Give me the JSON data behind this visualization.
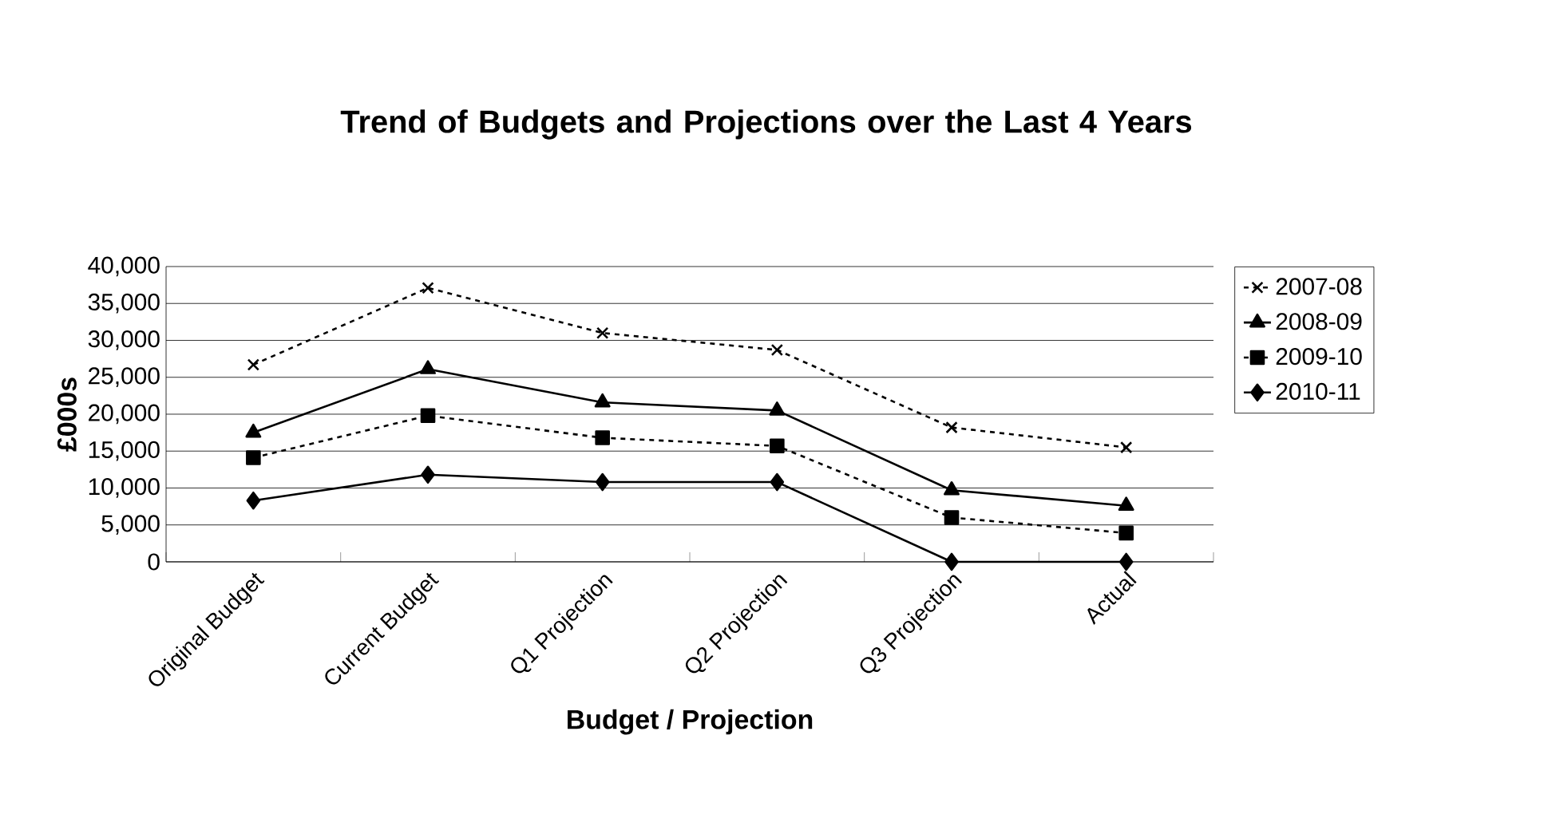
{
  "chart_data": {
    "type": "line",
    "title": "Trend of Budgets and Projections over the Last 4 Years",
    "xlabel": "Budget / Projection",
    "ylabel": "£000s",
    "categories": [
      "Original Budget",
      "Current Budget",
      "Q1 Projection",
      "Q2 Projection",
      "Q3 Projection",
      "Actual"
    ],
    "ylim": [
      0,
      40000
    ],
    "yticks": [
      {
        "value": 0,
        "label": "0"
      },
      {
        "value": 5000,
        "label": "5,000"
      },
      {
        "value": 10000,
        "label": "10,000"
      },
      {
        "value": 15000,
        "label": "15,000"
      },
      {
        "value": 20000,
        "label": "20,000"
      },
      {
        "value": 25000,
        "label": "25,000"
      },
      {
        "value": 30000,
        "label": "30,000"
      },
      {
        "value": 35000,
        "label": "35,000"
      },
      {
        "value": 40000,
        "label": "40,000"
      }
    ],
    "grid": "y",
    "legend": "right",
    "series": [
      {
        "name": "2007-08",
        "color": "#000000",
        "marker": "cross",
        "line_style": "dashed",
        "values": [
          26700,
          37100,
          31000,
          28700,
          18200,
          15500
        ]
      },
      {
        "name": "2008-09",
        "color": "#000000",
        "marker": "triangle",
        "line_style": "solid",
        "values": [
          17500,
          26100,
          21600,
          20500,
          9700,
          7600
        ]
      },
      {
        "name": "2009-10",
        "color": "#000000",
        "marker": "square",
        "line_style": "dashed",
        "values": [
          14100,
          19800,
          16800,
          15700,
          6000,
          3900
        ]
      },
      {
        "name": "2010-11",
        "color": "#000000",
        "marker": "diamond",
        "line_style": "solid",
        "values": [
          8300,
          11800,
          10800,
          10800,
          0,
          0
        ]
      }
    ]
  }
}
